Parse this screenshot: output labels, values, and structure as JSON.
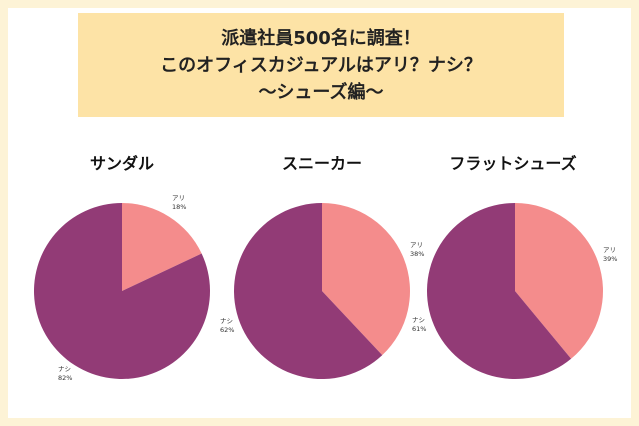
{
  "header": {
    "lines": [
      "派遣社員500名に調査！",
      "このオフィスカジュアルはアリ？ナシ？",
      "〜シューズ編〜"
    ]
  },
  "colors": {
    "page_background": "#fdf3d6",
    "title_background": "#fde3a6",
    "ari": "#f48c8c",
    "nashi": "#923b76"
  },
  "chart_data": [
    {
      "type": "pie",
      "title": "サンダル",
      "labels": [
        "アリ",
        "ナシ"
      ],
      "values": [
        18,
        82
      ],
      "value_labels": [
        "18%",
        "82%"
      ],
      "colors": [
        "#f48c8c",
        "#923b76"
      ]
    },
    {
      "type": "pie",
      "title": "スニーカー",
      "labels": [
        "アリ",
        "ナシ"
      ],
      "values": [
        38,
        62
      ],
      "value_labels": [
        "38%",
        "62%"
      ],
      "colors": [
        "#f48c8c",
        "#923b76"
      ]
    },
    {
      "type": "pie",
      "title": "フラットシューズ",
      "labels": [
        "アリ",
        "ナシ"
      ],
      "values": [
        39,
        61
      ],
      "value_labels": [
        "39%",
        "61%"
      ],
      "colors": [
        "#f48c8c",
        "#923b76"
      ]
    }
  ]
}
